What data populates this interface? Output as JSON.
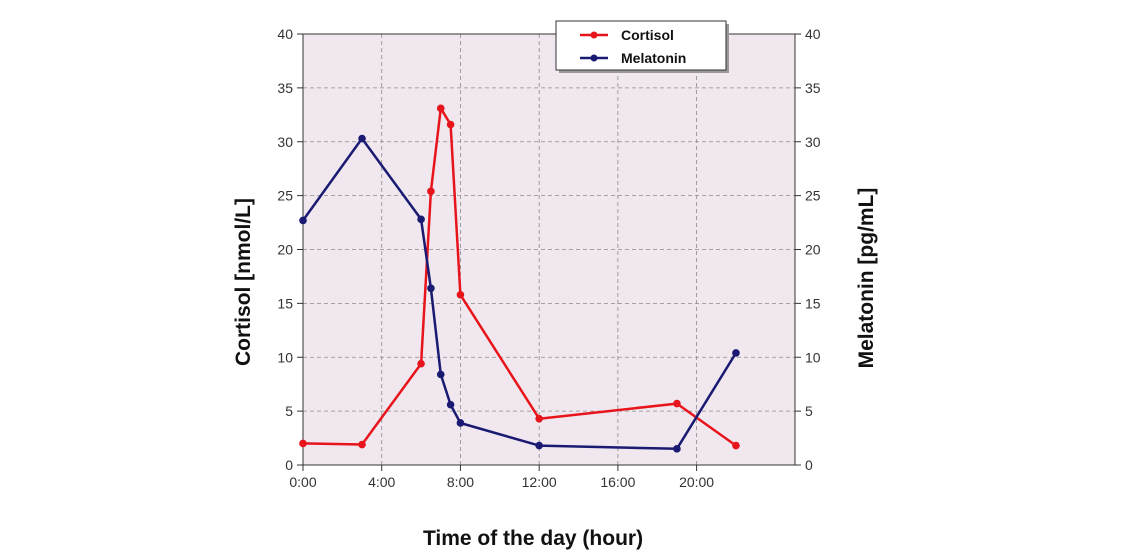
{
  "chart_data": {
    "type": "line",
    "xlabel": "Time of the day (hour)",
    "ylabel": "Cortisol [nmol/L]",
    "y2label": "Melatonin [pg/mL]",
    "xlim": [
      0,
      25
    ],
    "ylim": [
      0,
      40
    ],
    "y2lim": [
      0,
      40
    ],
    "x_ticks": [
      {
        "value": 0,
        "label": "0:00"
      },
      {
        "value": 4,
        "label": "4:00"
      },
      {
        "value": 8,
        "label": "8:00"
      },
      {
        "value": 12,
        "label": "12:00"
      },
      {
        "value": 16,
        "label": "16:00"
      },
      {
        "value": 20,
        "label": "20:00"
      }
    ],
    "y_ticks": [
      0,
      5,
      10,
      15,
      20,
      25,
      30,
      35,
      40
    ],
    "y_tick_labels": [
      "0",
      "5",
      "10",
      "15",
      "20",
      "25",
      "30",
      "35",
      "40"
    ],
    "grid": true,
    "plot_background": "#f0e8ee",
    "legend_position": "top-right",
    "series": [
      {
        "name": "Cortisol",
        "axis": "left",
        "color": "#e8141c",
        "x": [
          0,
          3,
          6,
          6.5,
          7,
          7.5,
          8,
          12,
          19,
          22
        ],
        "y": [
          2.0,
          1.9,
          9.4,
          25.4,
          33.1,
          31.6,
          15.8,
          4.3,
          5.7,
          1.8
        ]
      },
      {
        "name": "Melatonin",
        "axis": "right",
        "color": "#1a1a73",
        "x": [
          0,
          3,
          6,
          6.5,
          7,
          7.5,
          8,
          12,
          19,
          22
        ],
        "y": [
          22.7,
          30.3,
          22.8,
          16.4,
          8.4,
          5.6,
          3.9,
          1.8,
          1.5,
          10.4
        ]
      }
    ]
  }
}
